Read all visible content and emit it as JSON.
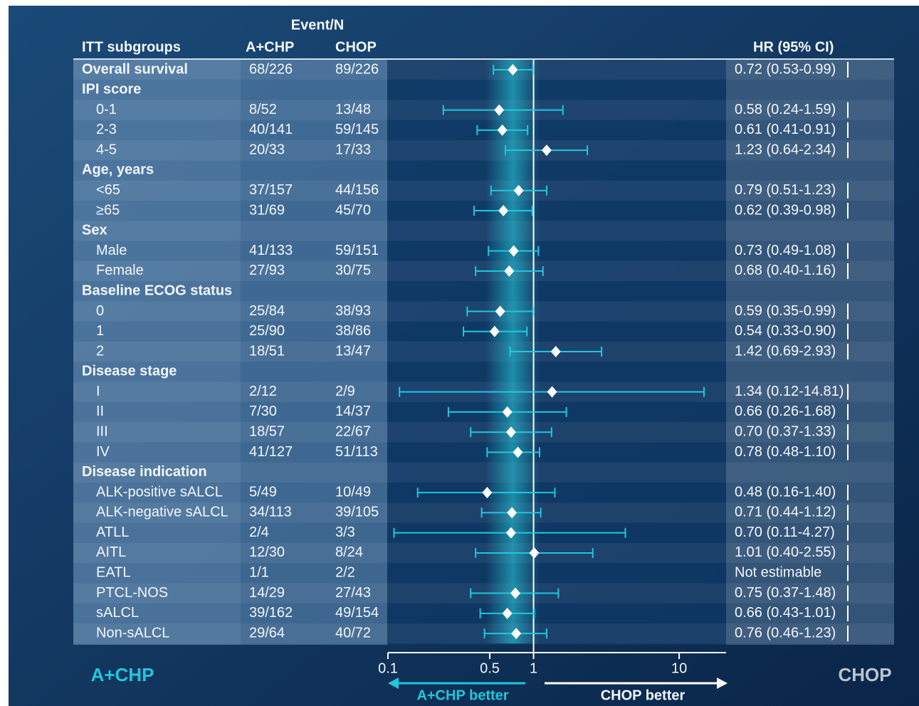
{
  "chart_data": {
    "type": "forest",
    "header": {
      "events": "Event/N",
      "subgroups": "ITT subgroups",
      "arm_a": "A+CHP",
      "arm_b": "CHOP",
      "hr": "HR (95% CI)"
    },
    "xlabel_left": "A+CHP better",
    "xlabel_right": "CHOP better",
    "corner_left": "A+CHP",
    "corner_right": "CHOP",
    "log_x": true,
    "xlim": [
      0.1,
      21
    ],
    "xticks": [
      0.1,
      0.5,
      1,
      10
    ],
    "reference": 1,
    "ci_color": "#1fc8dc",
    "rows": [
      {
        "label": "Overall survival",
        "acp": "68/226",
        "chop": "89/226",
        "hr": 0.72,
        "lo": 0.53,
        "hi": 0.99,
        "hr_text": "0.72 (0.53-0.99)"
      },
      {
        "label": "IPI score"
      },
      {
        "label": "0-1",
        "indent": true,
        "acp": "8/52",
        "chop": "13/48",
        "hr": 0.58,
        "lo": 0.24,
        "hi": 1.59,
        "hr_text": "0.58 (0.24-1.59)"
      },
      {
        "label": "2-3",
        "indent": true,
        "acp": "40/141",
        "chop": "59/145",
        "hr": 0.61,
        "lo": 0.41,
        "hi": 0.91,
        "hr_text": "0.61 (0.41-0.91)"
      },
      {
        "label": "4-5",
        "indent": true,
        "acp": "20/33",
        "chop": "17/33",
        "hr": 1.23,
        "lo": 0.64,
        "hi": 2.34,
        "hr_text": "1.23 (0.64-2.34)"
      },
      {
        "label": "Age, years"
      },
      {
        "label": "<65",
        "indent": true,
        "acp": "37/157",
        "chop": "44/156",
        "hr": 0.79,
        "lo": 0.51,
        "hi": 1.23,
        "hr_text": "0.79 (0.51-1.23)"
      },
      {
        "label": "≥65",
        "indent": true,
        "acp": "31/69",
        "chop": "45/70",
        "hr": 0.62,
        "lo": 0.39,
        "hi": 0.98,
        "hr_text": "0.62 (0.39-0.98)"
      },
      {
        "label": "Sex"
      },
      {
        "label": "Male",
        "indent": true,
        "acp": "41/133",
        "chop": "59/151",
        "hr": 0.73,
        "lo": 0.49,
        "hi": 1.08,
        "hr_text": "0.73 (0.49-1.08)"
      },
      {
        "label": "Female",
        "indent": true,
        "acp": "27/93",
        "chop": "30/75",
        "hr": 0.68,
        "lo": 0.4,
        "hi": 1.16,
        "hr_text": "0.68 (0.40-1.16)"
      },
      {
        "label": "Baseline ECOG status"
      },
      {
        "label": "0",
        "indent": true,
        "acp": "25/84",
        "chop": "38/93",
        "hr": 0.59,
        "lo": 0.35,
        "hi": 0.99,
        "hr_text": "0.59 (0.35-0.99)"
      },
      {
        "label": "1",
        "indent": true,
        "acp": "25/90",
        "chop": "38/86",
        "hr": 0.54,
        "lo": 0.33,
        "hi": 0.9,
        "hr_text": "0.54 (0.33-0.90)"
      },
      {
        "label": "2",
        "indent": true,
        "acp": "18/51",
        "chop": "13/47",
        "hr": 1.42,
        "lo": 0.69,
        "hi": 2.93,
        "hr_text": "1.42 (0.69-2.93)"
      },
      {
        "label": "Disease stage"
      },
      {
        "label": "I",
        "indent": true,
        "acp": "2/12",
        "chop": "2/9",
        "hr": 1.34,
        "lo": 0.12,
        "hi": 14.81,
        "hr_text": "1.34 (0.12-14.81)"
      },
      {
        "label": "II",
        "indent": true,
        "acp": "7/30",
        "chop": "14/37",
        "hr": 0.66,
        "lo": 0.26,
        "hi": 1.68,
        "hr_text": "0.66 (0.26-1.68)"
      },
      {
        "label": "III",
        "indent": true,
        "acp": "18/57",
        "chop": "22/67",
        "hr": 0.7,
        "lo": 0.37,
        "hi": 1.33,
        "hr_text": "0.70 (0.37-1.33)"
      },
      {
        "label": "IV",
        "indent": true,
        "acp": "41/127",
        "chop": "51/113",
        "hr": 0.78,
        "lo": 0.48,
        "hi": 1.1,
        "hr_text": "0.78 (0.48-1.10)"
      },
      {
        "label": "Disease indication"
      },
      {
        "label": "ALK-positive sALCL",
        "indent": true,
        "acp": "5/49",
        "chop": "10/49",
        "hr": 0.48,
        "lo": 0.16,
        "hi": 1.4,
        "hr_text": "0.48 (0.16-1.40)"
      },
      {
        "label": "ALK-negative sALCL",
        "indent": true,
        "acp": "34/113",
        "chop": "39/105",
        "hr": 0.71,
        "lo": 0.44,
        "hi": 1.12,
        "hr_text": "0.71 (0.44-1.12)"
      },
      {
        "label": "ATLL",
        "indent": true,
        "acp": "2/4",
        "chop": "3/3",
        "hr": 0.7,
        "lo": 0.11,
        "hi": 4.27,
        "hr_text": "0.70 (0.11-4.27)"
      },
      {
        "label": "AITL",
        "indent": true,
        "acp": "12/30",
        "chop": "8/24",
        "hr": 1.01,
        "lo": 0.4,
        "hi": 2.55,
        "hr_text": "1.01 (0.40-2.55)"
      },
      {
        "label": "EATL",
        "indent": true,
        "acp": "1/1",
        "chop": "2/2",
        "hr": null,
        "lo": null,
        "hi": null,
        "hr_text": "Not estimable"
      },
      {
        "label": "PTCL-NOS",
        "indent": true,
        "acp": "14/29",
        "chop": "27/43",
        "hr": 0.75,
        "lo": 0.37,
        "hi": 1.48,
        "hr_text": "0.75 (0.37-1.48)"
      },
      {
        "label": "sALCL",
        "indent": true,
        "acp": "39/162",
        "chop": "49/154",
        "hr": 0.66,
        "lo": 0.43,
        "hi": 1.01,
        "hr_text": "0.66 (0.43-1.01)"
      },
      {
        "label": "Non-sALCL",
        "indent": true,
        "acp": "29/64",
        "chop": "40/72",
        "hr": 0.76,
        "lo": 0.46,
        "hi": 1.23,
        "hr_text": "0.76 (0.46-1.23)"
      }
    ]
  }
}
